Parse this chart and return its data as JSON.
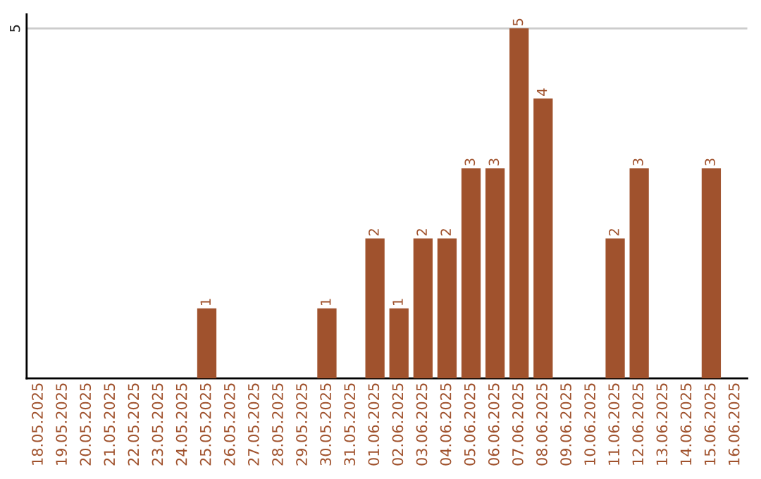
{
  "chart_data": {
    "type": "bar",
    "categories": [
      "18.05.2025",
      "19.05.2025",
      "20.05.2025",
      "21.05.2025",
      "22.05.2025",
      "23.05.2025",
      "24.05.2025",
      "25.05.2025",
      "26.05.2025",
      "27.05.2025",
      "28.05.2025",
      "29.05.2025",
      "30.05.2025",
      "31.05.2025",
      "01.06.2025",
      "02.06.2025",
      "03.06.2025",
      "04.06.2025",
      "05.06.2025",
      "06.06.2025",
      "07.06.2025",
      "08.06.2025",
      "09.06.2025",
      "10.06.2025",
      "11.06.2025",
      "12.06.2025",
      "13.06.2025",
      "14.06.2025",
      "15.06.2025",
      "16.06.2025"
    ],
    "values": [
      null,
      null,
      null,
      null,
      null,
      null,
      null,
      1,
      null,
      null,
      null,
      null,
      1,
      null,
      2,
      1,
      2,
      2,
      3,
      3,
      5,
      4,
      null,
      null,
      2,
      3,
      null,
      null,
      3,
      null
    ],
    "color": "#a0522d",
    "ylim": [
      0,
      5.2
    ],
    "yticks": [
      5
    ],
    "grid": "y",
    "data_labels": true,
    "legend": false
  }
}
